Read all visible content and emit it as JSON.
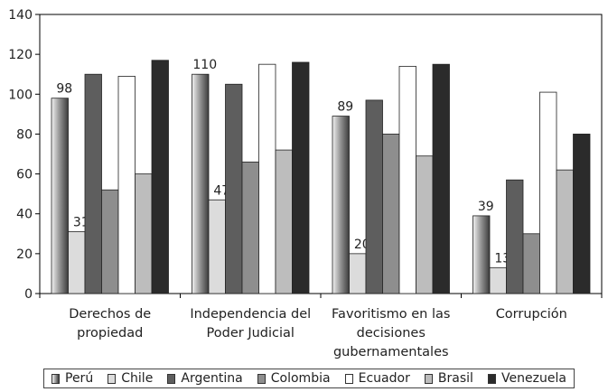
{
  "chart_data": {
    "type": "bar",
    "categories": [
      [
        "Derechos de",
        "propiedad"
      ],
      [
        "Independencia del",
        "Poder Judicial"
      ],
      [
        "Favoritismo en las",
        "decisiones",
        "gubernamentales"
      ],
      [
        "Corrupción"
      ]
    ],
    "series": [
      {
        "name": "Perú",
        "values": [
          98,
          110,
          89,
          39
        ],
        "labels": [
          "98",
          "110",
          "89",
          "39"
        ]
      },
      {
        "name": "Chile",
        "values": [
          31,
          47,
          20,
          13
        ],
        "labels": [
          "31",
          "47",
          "20",
          "13"
        ]
      },
      {
        "name": "Argentina",
        "values": [
          110,
          105,
          97,
          57
        ]
      },
      {
        "name": "Colombia",
        "values": [
          52,
          66,
          80,
          30
        ]
      },
      {
        "name": "Ecuador",
        "values": [
          109,
          115,
          114,
          101
        ]
      },
      {
        "name": "Brasil",
        "values": [
          60,
          72,
          69,
          62
        ]
      },
      {
        "name": "Venezuela",
        "values": [
          117,
          116,
          115,
          80
        ]
      }
    ],
    "ylim": [
      0,
      140
    ],
    "yticks": [
      0,
      20,
      40,
      60,
      80,
      100,
      120,
      140
    ],
    "legend_position": "bottom",
    "grid": false
  },
  "colors": {
    "Perú": "#888888",
    "Chile": "#dcdcdc",
    "Argentina": "#5e5e5e",
    "Colombia": "#8e8e8e",
    "Ecuador": "#ffffff",
    "Brasil": "#bdbdbd",
    "Venezuela": "#2b2b2b"
  }
}
